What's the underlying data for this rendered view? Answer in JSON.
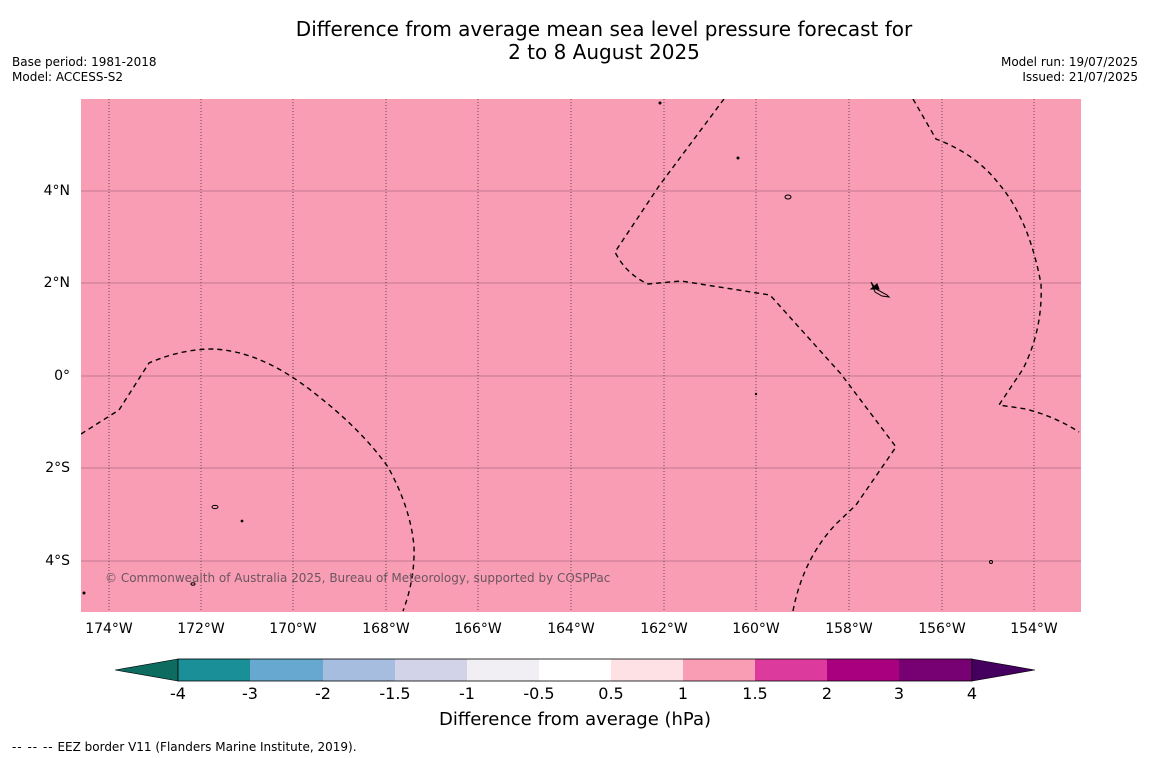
{
  "title_line1": "Difference from average mean sea level pressure forecast for",
  "title_line2": "2 to 8 August 2025",
  "meta_left": [
    "Base period: 1981-2018",
    "Model: ACCESS-S2"
  ],
  "meta_right": [
    "Model run: 19/07/2025",
    "Issued: 21/07/2025"
  ],
  "copyright": "© Commonwealth of Australia 2025, Bureau of Meteorology, supported by COSPPac",
  "lat_labels": [
    "4°N",
    "2°N",
    "0°",
    "2°S",
    "4°S"
  ],
  "lon_labels": [
    "174°W",
    "172°W",
    "170°W",
    "168°W",
    "166°W",
    "164°W",
    "162°W",
    "160°W",
    "158°W",
    "156°W",
    "154°W"
  ],
  "field_value_hPa_range": [
    1,
    1.5
  ],
  "colorbar": {
    "title": "Difference from average (hPa)",
    "tick_labels": [
      "-4",
      "-3",
      "-2",
      "-1.5",
      "-1",
      "-0.5",
      "0.5",
      "1",
      "1.5",
      "2",
      "3",
      "4"
    ],
    "colors": [
      "#0d6b5f",
      "#1b8f98",
      "#67a8d0",
      "#a7bddf",
      "#d2d3e9",
      "#f1eff4",
      "#ffffff",
      "#fde1e4",
      "#f99db5",
      "#dc3a9d",
      "#a8007f",
      "#770073",
      "#45005f"
    ]
  },
  "legend_note": {
    "symbol": "--  --  --",
    "text": "EEZ border V11 (Flanders Marine Institute, 2019)."
  },
  "colors": {
    "map_fill": "#f99db5",
    "grid": "#b06a82"
  }
}
